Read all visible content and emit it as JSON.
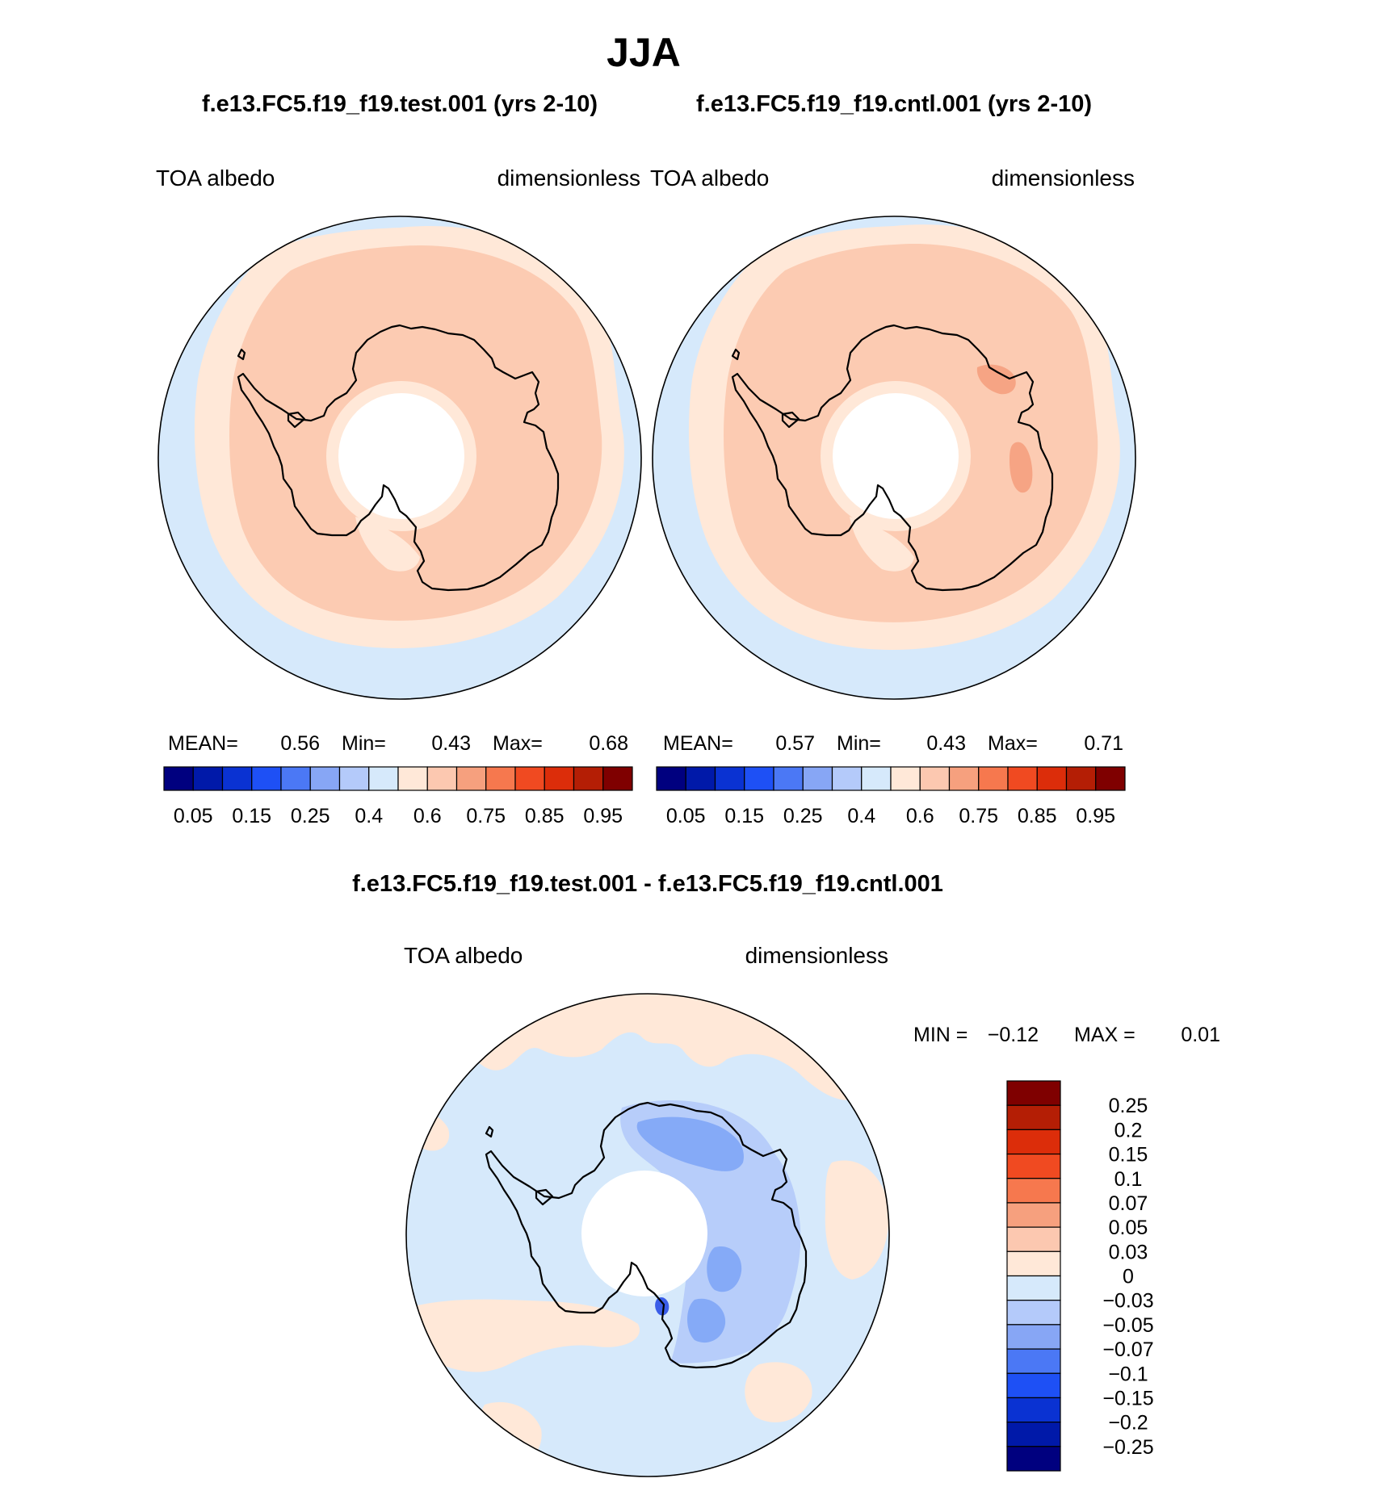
{
  "title": "JJA",
  "panel_left": {
    "case_title": "f.e13.FC5.f19_f19.test.001 (yrs 2-10)",
    "var_label": "TOA albedo",
    "units_label": "dimensionless",
    "stats_mean_label": "MEAN=",
    "stats_mean": "0.56",
    "stats_min_label": "Min=",
    "stats_min": "0.43",
    "stats_max_label": "Max=",
    "stats_max": "0.68"
  },
  "panel_right": {
    "case_title": "f.e13.FC5.f19_f19.cntl.001 (yrs 2-10)",
    "var_label": "TOA albedo",
    "units_label": "dimensionless",
    "stats_mean_label": "MEAN=",
    "stats_mean": "0.57",
    "stats_min_label": "Min=",
    "stats_min": "0.43",
    "stats_max_label": "Max=",
    "stats_max": "0.71"
  },
  "panel_diff": {
    "case_title": "f.e13.FC5.f19_f19.test.001 - f.e13.FC5.f19_f19.cntl.001",
    "var_label": "TOA albedo",
    "units_label": "dimensionless",
    "min_label": "MIN =",
    "min_value": "−0.12",
    "max_label": "MAX =",
    "max_value": "0.01"
  },
  "colors": {
    "map_blue": "#d6e9fb",
    "map_cream": "#ffe8d8",
    "map_salmon": "#fccbb2",
    "map_orange": "#f6a484",
    "diff_blue_light": "#b7cdfa",
    "diff_blue_mid": "#85aaf7",
    "diff_blue_dark": "#3a5de8"
  },
  "chart_data": [
    {
      "type": "heatmap",
      "title": "f.e13.FC5.f19_f19.test.001 (yrs 2-10)",
      "projection": "south polar stereographic",
      "variable": "TOA albedo",
      "units": "dimensionless",
      "season": "JJA",
      "mean": 0.56,
      "min": 0.43,
      "max": 0.68,
      "colorbar": {
        "tick_labels": [
          "0.05",
          "0.15",
          "0.25",
          "0.4",
          "0.6",
          "0.75",
          "0.85",
          "0.95"
        ],
        "levels": [
          0.05,
          0.1,
          0.15,
          0.2,
          0.25,
          0.3,
          0.4,
          0.5,
          0.6,
          0.7,
          0.75,
          0.8,
          0.85,
          0.9,
          0.95
        ],
        "colors": [
          "#00007f",
          "#0019a9",
          "#0a32d2",
          "#1e50f5",
          "#4b78f5",
          "#87a6f5",
          "#b4cafa",
          "#d6e9fb",
          "#ffe8d8",
          "#fcc8b0",
          "#f6a07e",
          "#f6784e",
          "#f04a21",
          "#dc2d0a",
          "#b41e05",
          "#7f0000"
        ]
      }
    },
    {
      "type": "heatmap",
      "title": "f.e13.FC5.f19_f19.cntl.001 (yrs 2-10)",
      "projection": "south polar stereographic",
      "variable": "TOA albedo",
      "units": "dimensionless",
      "season": "JJA",
      "mean": 0.57,
      "min": 0.43,
      "max": 0.71,
      "colorbar": {
        "tick_labels": [
          "0.05",
          "0.15",
          "0.25",
          "0.4",
          "0.6",
          "0.75",
          "0.85",
          "0.95"
        ],
        "levels": [
          0.05,
          0.1,
          0.15,
          0.2,
          0.25,
          0.3,
          0.4,
          0.5,
          0.6,
          0.7,
          0.75,
          0.8,
          0.85,
          0.9,
          0.95
        ],
        "colors": [
          "#00007f",
          "#0019a9",
          "#0a32d2",
          "#1e50f5",
          "#4b78f5",
          "#87a6f5",
          "#b4cafa",
          "#d6e9fb",
          "#ffe8d8",
          "#fcc8b0",
          "#f6a07e",
          "#f6784e",
          "#f04a21",
          "#dc2d0a",
          "#b41e05",
          "#7f0000"
        ]
      }
    },
    {
      "type": "heatmap",
      "title": "f.e13.FC5.f19_f19.test.001 - f.e13.FC5.f19_f19.cntl.001",
      "projection": "south polar stereographic",
      "variable": "TOA albedo",
      "units": "dimensionless",
      "season": "JJA",
      "min": -0.12,
      "max": 0.01,
      "colorbar": {
        "orientation": "vertical",
        "tick_labels": [
          "0.25",
          "0.2",
          "0.15",
          "0.1",
          "0.07",
          "0.05",
          "0.03",
          "0",
          "−0.03",
          "−0.05",
          "−0.07",
          "−0.1",
          "−0.15",
          "−0.2",
          "−0.25"
        ],
        "colors": [
          "#7f0000",
          "#b41e05",
          "#dc2d0a",
          "#f04a21",
          "#f6784e",
          "#f6a07e",
          "#fcc8b0",
          "#ffe8d8",
          "#d6e9fb",
          "#b4cafa",
          "#87a6f5",
          "#4b78f5",
          "#1e50f5",
          "#0a32d2",
          "#0019a9",
          "#00007f"
        ]
      }
    }
  ]
}
